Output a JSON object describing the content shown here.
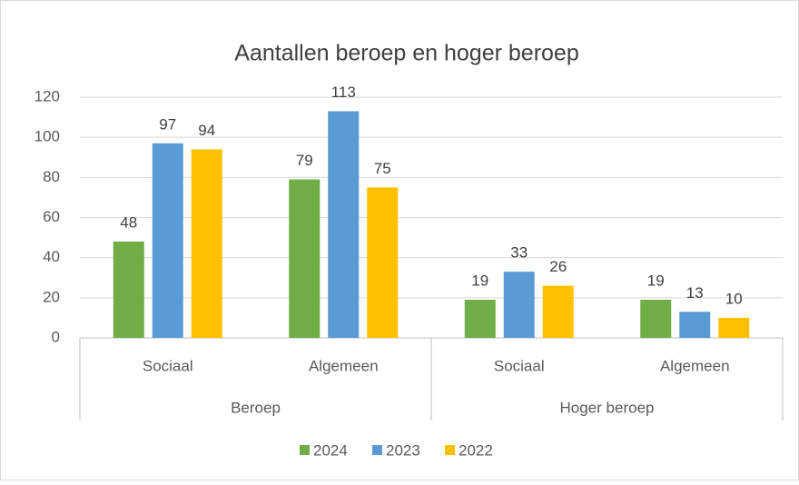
{
  "chart_data": {
    "type": "bar",
    "title": "Aantallen beroep en hoger beroep",
    "groups": [
      {
        "name": "Beroep",
        "categories": [
          "Sociaal",
          "Algemeen"
        ]
      },
      {
        "name": "Hoger beroep",
        "categories": [
          "Sociaal",
          "Algemeen"
        ]
      }
    ],
    "series": [
      {
        "name": "2024",
        "color": "#70ad47",
        "values": [
          48,
          79,
          19,
          19
        ]
      },
      {
        "name": "2023",
        "color": "#5b9bd5",
        "values": [
          97,
          113,
          33,
          13
        ]
      },
      {
        "name": "2022",
        "color": "#ffc000",
        "values": [
          94,
          75,
          26,
          10
        ]
      }
    ],
    "ylim": [
      0,
      120
    ],
    "yticks": [
      0,
      20,
      40,
      60,
      80,
      100,
      120
    ],
    "grid": true,
    "legend": "bottom"
  }
}
